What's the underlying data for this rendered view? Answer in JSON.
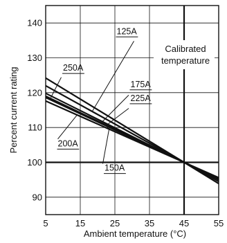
{
  "chart_data": {
    "type": "line",
    "title": "",
    "xlabel": "Ambient temperature (°C)",
    "ylabel": "Percent current rating",
    "xlim": [
      5,
      55
    ],
    "ylim": [
      85,
      145
    ],
    "xticks": [
      5,
      15,
      25,
      35,
      45,
      55
    ],
    "yticks": [
      90,
      100,
      110,
      120,
      130,
      140
    ],
    "grid": true,
    "annotations": [
      {
        "text_lines": [
          "Calibrated",
          "temperature"
        ],
        "x": 45
      }
    ],
    "series": [
      {
        "name": "125A",
        "x": [
          5,
          45,
          55
        ],
        "y": [
          124.2,
          100,
          93.9
        ]
      },
      {
        "name": "250A",
        "x": [
          5,
          45,
          55
        ],
        "y": [
          122.0,
          100,
          94.5
        ]
      },
      {
        "name": "175A",
        "x": [
          5,
          45,
          55
        ],
        "y": [
          119.8,
          100,
          95.0
        ]
      },
      {
        "name": "225A",
        "x": [
          5,
          45,
          55
        ],
        "y": [
          119.0,
          100,
          95.3
        ]
      },
      {
        "name": "200A",
        "x": [
          5,
          45,
          55
        ],
        "y": [
          118.6,
          100,
          95.4
        ]
      },
      {
        "name": "150A",
        "x": [
          5,
          45,
          55
        ],
        "y": [
          117.6,
          100,
          95.6
        ]
      }
    ],
    "series_labels": [
      {
        "series": "125A",
        "tx": 25.5,
        "ty": 136.8,
        "line": [
          [
            30.5,
            134.8
          ],
          [
            18.5,
            114.7
          ]
        ]
      },
      {
        "series": "250A",
        "tx": 10.0,
        "ty": 126.3,
        "line": [
          [
            9.5,
            124.4
          ],
          [
            6.5,
            118.6
          ]
        ]
      },
      {
        "series": "175A",
        "tx": 29.5,
        "ty": 121.6,
        "line": [
          [
            29.0,
            119.3
          ],
          [
            21.5,
            111.8
          ]
        ]
      },
      {
        "series": "225A",
        "tx": 29.5,
        "ty": 117.6,
        "line": [
          [
            29.0,
            115.5
          ],
          [
            22.5,
            110.6
          ]
        ]
      },
      {
        "series": "200A",
        "tx": 8.5,
        "ty": 104.6,
        "line": [
          [
            8.5,
            106.7
          ],
          [
            14.0,
            113.5
          ]
        ]
      },
      {
        "series": "150A",
        "tx": 22.0,
        "ty": 97.6,
        "line": [
          [
            21.5,
            99.6
          ],
          [
            23.5,
            110.5
          ]
        ]
      }
    ]
  }
}
